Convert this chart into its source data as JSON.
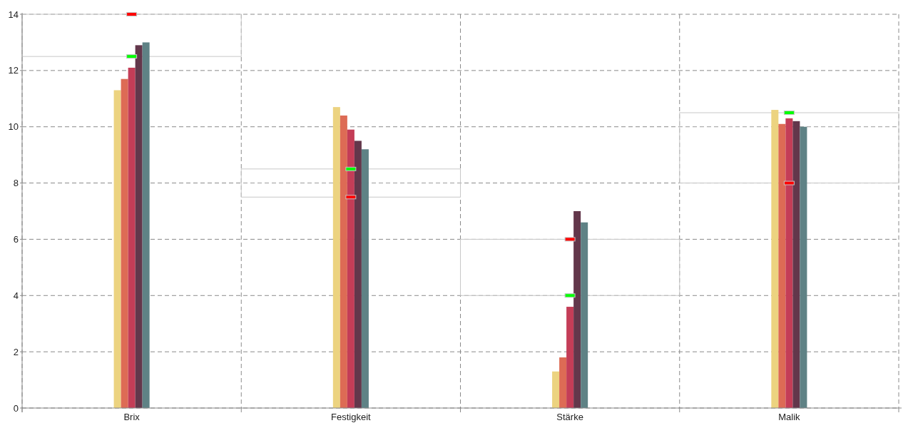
{
  "chart_data": {
    "type": "bar",
    "categories": [
      "Brix",
      "Festigkeit",
      "Stärke",
      "Malik"
    ],
    "series": [
      {
        "color": "#ecd380",
        "values": [
          11.3,
          10.7,
          1.3,
          10.6
        ]
      },
      {
        "color": "#dd6b55",
        "values": [
          11.7,
          10.4,
          1.8,
          10.1
        ]
      },
      {
        "color": "#c43d57",
        "values": [
          12.1,
          9.9,
          3.6,
          10.3
        ]
      },
      {
        "color": "#63374b",
        "values": [
          12.9,
          9.5,
          7.0,
          10.2
        ]
      },
      {
        "color": "#5f8285",
        "values": [
          13.0,
          9.2,
          6.6,
          10.0
        ]
      },
      {
        "color": "#c8c8c8",
        "base": [
          12.5,
          7.5,
          4,
          8
        ],
        "values": [
          1.5,
          1,
          2,
          2.5
        ]
      },
      {
        "type": "scatter",
        "color": "#00ff00",
        "x": [
          "Brix",
          "Festigkeit",
          "Stärke",
          "Malik"
        ],
        "values": [
          12.5,
          8.5,
          4,
          10.5
        ]
      },
      {
        "type": "scatter",
        "color": "#ff0000",
        "x": [
          "Brix",
          "Festigkeit",
          "Stärke",
          "Malik"
        ],
        "values": [
          14,
          7.5,
          6,
          8
        ]
      }
    ],
    "ylim": [
      0,
      14
    ],
    "yticks": [
      0,
      2,
      4,
      6,
      8,
      10,
      12,
      14
    ],
    "grid": true
  }
}
